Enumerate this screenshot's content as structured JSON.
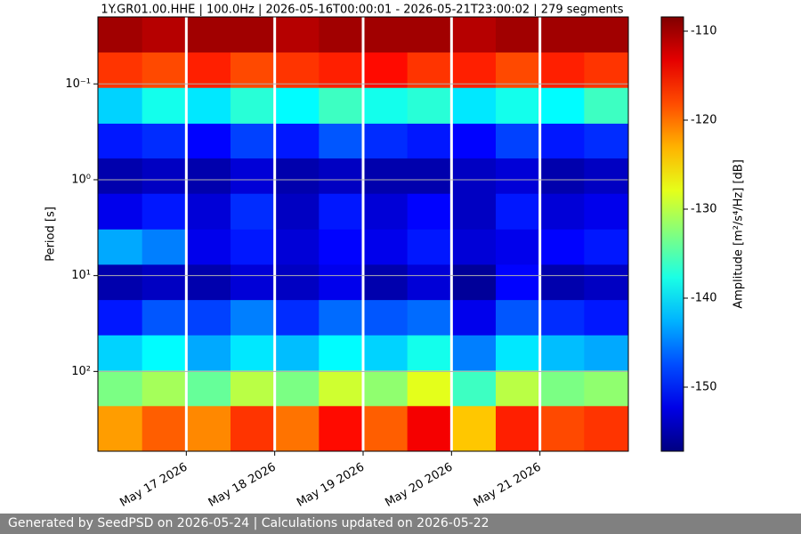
{
  "chart_data": {
    "type": "heatmap",
    "title": "1Y.GR01.00.HHE | 100.0Hz | 2026-05-16T00:00:01 - 2026-05-21T23:00:02 | 279 segments",
    "y_label": "Period [s]",
    "colorbar_label": "Amplitude [m²/s⁴/Hz] [dB]",
    "colormap": "jet",
    "y_log": true,
    "y_inverted": true,
    "grid": true,
    "xlim": [
      "2026-05-16T00:00",
      "2026-05-22T00:00"
    ],
    "xticks": [
      {
        "value": "2026-05-17",
        "label": "May 17 2026"
      },
      {
        "value": "2026-05-18",
        "label": "May 18 2026"
      },
      {
        "value": "2026-05-19",
        "label": "May 19 2026"
      },
      {
        "value": "2026-05-20",
        "label": "May 20 2026"
      },
      {
        "value": "2026-05-21",
        "label": "May 21 2026"
      }
    ],
    "ylim": [
      0.02,
      680
    ],
    "yticks": [
      {
        "value": 0.1,
        "label": "10⁻¹"
      },
      {
        "value": 1,
        "label": "10⁰"
      },
      {
        "value": 10,
        "label": "10¹"
      },
      {
        "value": 100,
        "label": "10²"
      }
    ],
    "clim": [
      -157.2,
      -108.4
    ],
    "cticks": [
      -110,
      -120,
      -130,
      -140,
      -150
    ],
    "x_edges": [
      "2026-05-16T00:00",
      "2026-05-16T12:00",
      "2026-05-17T00:00",
      "2026-05-17T12:00",
      "2026-05-18T00:00",
      "2026-05-18T12:00",
      "2026-05-19T00:00",
      "2026-05-19T12:00",
      "2026-05-20T00:00",
      "2026-05-20T12:00",
      "2026-05-21T00:00",
      "2026-05-21T12:00",
      "2026-05-22T00:00"
    ],
    "y_edges": [
      0.02,
      0.047,
      0.11,
      0.26,
      0.6,
      1.4,
      3.3,
      7.7,
      18,
      42,
      98,
      230,
      680
    ],
    "z": [
      [
        -110,
        -111,
        -110,
        -110,
        -111,
        -110,
        -110,
        -110,
        -111,
        -110,
        -110,
        -110
      ],
      [
        -117,
        -118,
        -116,
        -118,
        -117,
        -116,
        -115,
        -117,
        -116,
        -118,
        -116,
        -117
      ],
      [
        -141,
        -138,
        -140,
        -137,
        -139,
        -136,
        -138,
        -137,
        -140,
        -138,
        -139,
        -136
      ],
      [
        -150,
        -149,
        -151,
        -148,
        -150,
        -147,
        -149,
        -150,
        -151,
        -148,
        -150,
        -149
      ],
      [
        -155,
        -154,
        -155,
        -153,
        -155,
        -154,
        -155,
        -155,
        -154,
        -153,
        -155,
        -154
      ],
      [
        -152,
        -150,
        -153,
        -149,
        -154,
        -150,
        -153,
        -151,
        -154,
        -150,
        -153,
        -152
      ],
      [
        -143,
        -145,
        -152,
        -150,
        -153,
        -151,
        -152,
        -150,
        -153,
        -152,
        -151,
        -150
      ],
      [
        -155,
        -154,
        -155,
        -153,
        -154,
        -152,
        -155,
        -153,
        -156,
        -151,
        -155,
        -154
      ],
      [
        -150,
        -147,
        -148,
        -145,
        -149,
        -146,
        -147,
        -146,
        -152,
        -147,
        -149,
        -150
      ],
      [
        -141,
        -139,
        -143,
        -140,
        -142,
        -139,
        -141,
        -138,
        -145,
        -140,
        -142,
        -143
      ],
      [
        -133,
        -131,
        -134,
        -130,
        -133,
        -129,
        -132,
        -128,
        -136,
        -130,
        -133,
        -132
      ],
      [
        -122,
        -119,
        -121,
        -117,
        -120,
        -115,
        -119,
        -114,
        -124,
        -116,
        -118,
        -117
      ]
    ]
  },
  "footer": {
    "text": "Generated by SeedPSD on 2026-05-24 | Calculations updated on 2026-05-22"
  }
}
